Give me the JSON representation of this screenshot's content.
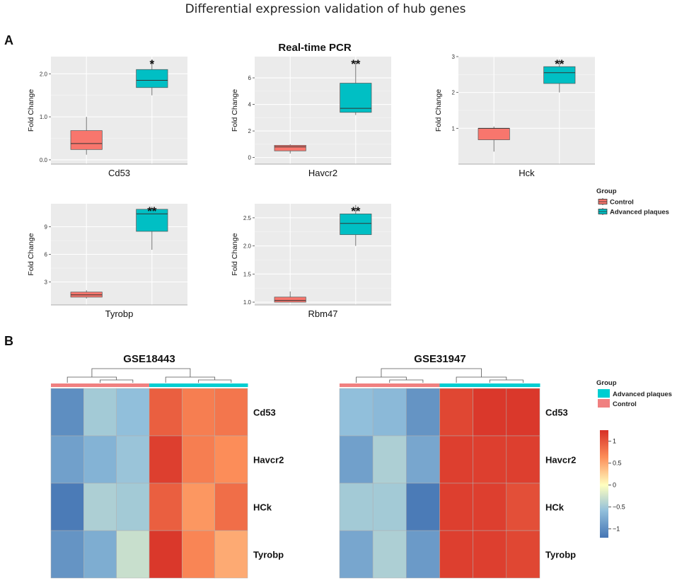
{
  "figure": {
    "title": "Differential expression validation of hub genes",
    "panel_a_label": "A",
    "panel_b_label": "B",
    "panel_a_title": "Real-time PCR"
  },
  "colors": {
    "control": "#f8766d",
    "advanced": "#00bfc4",
    "panel_bg": "#ebebeb",
    "heat_low": "#4575b4",
    "heat_mid": "#ffffbf",
    "heat_high": "#d73027"
  },
  "chart_data": [
    {
      "type": "box",
      "gene": "Cd53",
      "ylabel": "Fold Change",
      "ylim": [
        -0.1,
        2.4
      ],
      "yticks": [
        0.0,
        1.0,
        2.0
      ],
      "ytick_labels": [
        "0.0",
        "1.0",
        "2.0"
      ],
      "significance": "*",
      "series": [
        {
          "name": "Control",
          "min": 0.12,
          "q1": 0.24,
          "median": 0.38,
          "q3": 0.68,
          "max": 1.0
        },
        {
          "name": "Advanced plaques",
          "min": 1.5,
          "q1": 1.68,
          "median": 1.85,
          "q3": 2.1,
          "max": 2.32
        }
      ]
    },
    {
      "type": "box",
      "gene": "Havcr2",
      "ylabel": "Fold Change",
      "ylim": [
        -0.5,
        7.6
      ],
      "yticks": [
        0,
        2,
        4,
        6
      ],
      "ytick_labels": [
        "0",
        "2",
        "4",
        "6"
      ],
      "significance": "**",
      "series": [
        {
          "name": "Control",
          "min": 0.3,
          "q1": 0.5,
          "median": 0.8,
          "q3": 0.92,
          "max": 1.0
        },
        {
          "name": "Advanced plaques",
          "min": 3.2,
          "q1": 3.4,
          "median": 3.7,
          "q3": 5.6,
          "max": 7.3
        }
      ]
    },
    {
      "type": "box",
      "gene": "Hck",
      "ylabel": "Fold Change",
      "ylim": [
        0.0,
        3.0
      ],
      "yticks": [
        1,
        2,
        3
      ],
      "ytick_labels": [
        "1",
        "2",
        "3"
      ],
      "significance": "**",
      "series": [
        {
          "name": "Control",
          "min": 0.35,
          "q1": 0.68,
          "median": 1.0,
          "q3": 1.0,
          "max": 1.05
        },
        {
          "name": "Advanced plaques",
          "min": 2.0,
          "q1": 2.25,
          "median": 2.55,
          "q3": 2.72,
          "max": 2.92
        }
      ]
    },
    {
      "type": "box",
      "gene": "Tyrobp",
      "ylabel": "Fold Change",
      "ylim": [
        0.5,
        11.5
      ],
      "yticks": [
        3,
        6,
        9
      ],
      "ytick_labels": [
        "3",
        "6",
        "9"
      ],
      "significance": "**",
      "series": [
        {
          "name": "Control",
          "min": 1.2,
          "q1": 1.35,
          "median": 1.6,
          "q3": 1.9,
          "max": 2.1
        },
        {
          "name": "Advanced plaques",
          "min": 6.5,
          "q1": 8.5,
          "median": 10.4,
          "q3": 10.9,
          "max": 11.2
        }
      ]
    },
    {
      "type": "box",
      "gene": "Rbm47",
      "ylabel": "Fold Change",
      "ylim": [
        0.95,
        2.75
      ],
      "yticks": [
        1.0,
        1.5,
        2.0,
        2.5
      ],
      "ytick_labels": [
        "1.0",
        "1.5",
        "2.0",
        "2.5"
      ],
      "significance": "**",
      "series": [
        {
          "name": "Control",
          "min": 1.0,
          "q1": 1.0,
          "median": 1.03,
          "q3": 1.09,
          "max": 1.19
        },
        {
          "name": "Advanced plaques",
          "min": 2.0,
          "q1": 2.2,
          "median": 2.4,
          "q3": 2.57,
          "max": 2.73
        }
      ]
    },
    {
      "type": "heatmap",
      "title": "GSE18443",
      "rows": [
        "Cd53",
        "Havcr2",
        "HCk",
        "Tyrobp"
      ],
      "column_groups": [
        "Control",
        "Control",
        "Control",
        "Advanced plaques",
        "Advanced plaques",
        "Advanced plaques"
      ],
      "values": [
        [
          -1.0,
          -0.5,
          -0.6,
          0.9,
          0.7,
          0.75
        ],
        [
          -0.85,
          -0.7,
          -0.55,
          1.1,
          0.7,
          0.6
        ],
        [
          -1.15,
          -0.45,
          -0.5,
          0.9,
          0.55,
          0.8
        ],
        [
          -0.95,
          -0.75,
          -0.3,
          1.15,
          0.65,
          0.45
        ]
      ]
    },
    {
      "type": "heatmap",
      "title": "GSE31947",
      "rows": [
        "Cd53",
        "Havcr2",
        "HCk",
        "Tyrobp"
      ],
      "column_groups": [
        "Control",
        "Control",
        "Control",
        "Advanced plaques",
        "Advanced plaques",
        "Advanced plaques"
      ],
      "values": [
        [
          -0.6,
          -0.65,
          -0.95,
          1.05,
          1.15,
          1.15
        ],
        [
          -0.85,
          -0.45,
          -0.8,
          1.1,
          1.1,
          1.1
        ],
        [
          -0.5,
          -0.5,
          -1.15,
          1.1,
          1.1,
          1.0
        ],
        [
          -0.8,
          -0.45,
          -0.9,
          1.1,
          1.1,
          1.05
        ]
      ]
    }
  ],
  "legend_a": {
    "title": "Group",
    "items": [
      "Control",
      "Advanced plaques"
    ]
  },
  "legend_b": {
    "title": "Group",
    "items": [
      "Advanced plaques",
      "Control"
    ]
  },
  "colorbar": {
    "range": [
      -1.2,
      1.25
    ],
    "ticks": [
      1,
      0.5,
      0,
      -0.5,
      -1
    ],
    "tick_labels": [
      "1",
      "0.5",
      "0",
      "−0.5",
      "−1"
    ]
  }
}
